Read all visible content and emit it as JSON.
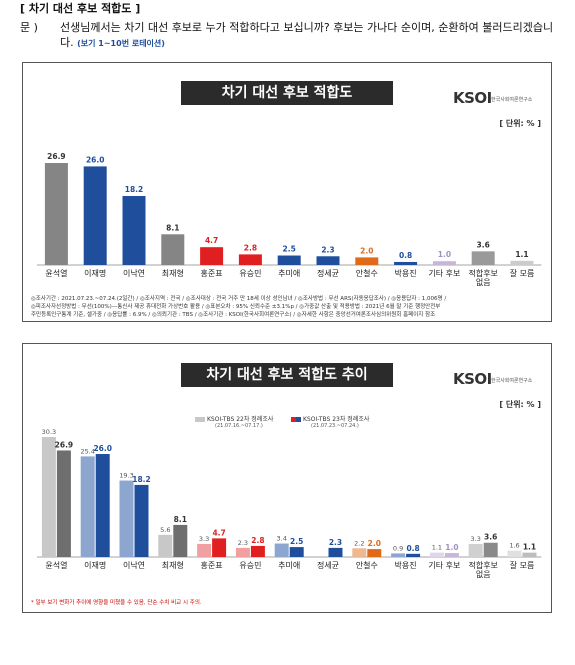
{
  "page": {
    "section_title": "[ 차기 대선 후보 적합도 ]",
    "question_label": "문 )",
    "question_text": "선생님께서는 차기 대선 후보로 누가 적합하다고 보십니까? 후보는 가나다 순이며, 순환하여 불러드리겠습니다.",
    "question_note": "(보기 1~10번 로테이션)"
  },
  "panel1": {
    "title": "차기 대선 후보 적합도",
    "logo_main": "KSOI",
    "logo_sub": "한국사회여론연구소",
    "unit": "[ 단위: % ]",
    "footnote_line1": "◎조사기간 : 2021.07.23.~07.24.(2일간) / ◎조사지역 : 전국 / ◎조사대상 : 전국 거주 만 18세 이상 성인남녀 / ◎조사방법 : 무선 ARS(자동응답조사) / ◎응용답자 : 1,006명 /",
    "footnote_line2": "◎피조사자선정방법 : 무선(100%)—통신사 제공 휴대전화 가상번호 활용 / ◎표본오차 : 95% 신뢰수준 ±3.1%p / ◎가중값 산출 및 적용방법 : 2021년 6월 말 기준 행정안전부",
    "footnote_line3": "주민등록인구통계 기준, 셀가중 / ◎응답률 : 6.9% / ◎의뢰기관 : TBS / ◎조사기관 : KSOI(한국사회여론연구소) / ◎자세한 사항은 중앙선거여론조사심의위원회 홈페이지 참조"
  },
  "panel2": {
    "title": "차기 대선 후보 적합도 추이",
    "logo_main": "KSOI",
    "logo_sub": "한국사회여론연구소",
    "unit": "[ 단위: % ]",
    "legend1": "KSOI-TBS 22차 정례조사",
    "legend1_sub": "(21.07.16.~07.17.)",
    "legend2": "KSOI-TBS 23차 정례조사",
    "legend2_sub": "(21.07.23.~07.24.)",
    "footnote": "* 일부 보기 변화가 추이에 영향을 미쳤을 수 있음, 단순 수치 비교 시 주의."
  },
  "chart_data": [
    {
      "type": "bar",
      "title": "차기 대선 후보 적합도",
      "categories": [
        "윤석열",
        "이재명",
        "이낙연",
        "최재형",
        "홍준표",
        "유승민",
        "추미애",
        "정세균",
        "안철수",
        "박용진",
        "기타 후보",
        "적합후보 없음",
        "잘 모름"
      ],
      "values": [
        26.9,
        26.0,
        18.2,
        8.1,
        4.7,
        2.8,
        2.5,
        2.3,
        2.0,
        0.8,
        1.0,
        3.6,
        1.1
      ],
      "labels": [
        "26.9",
        "26.0",
        "18.2",
        "8.1",
        "4.7",
        "2.8",
        "2.5",
        "2.3",
        "2.0",
        "0.8",
        "1.0",
        "3.6",
        "1.1"
      ],
      "colors": [
        "#858585",
        "#1f4e9c",
        "#1f4e9c",
        "#858585",
        "#e02020",
        "#e02020",
        "#1f4e9c",
        "#1f4e9c",
        "#e06a1a",
        "#1f4e9c",
        "#c6b6d8",
        "#9a9a9a",
        "#cccccc"
      ],
      "label_colors": [
        "#333333",
        "#1f4e9c",
        "#1f4e9c",
        "#333333",
        "#e02020",
        "#e02020",
        "#1f4e9c",
        "#1f4e9c",
        "#e06a1a",
        "#1f4e9c",
        "#a090c0",
        "#333333",
        "#333333"
      ],
      "ylim": [
        0,
        30
      ]
    },
    {
      "type": "bar",
      "title": "차기 대선 후보 적합도 추이",
      "categories": [
        "윤석열",
        "이재명",
        "이낙연",
        "최재형",
        "홍준표",
        "유승민",
        "추미애",
        "정세균",
        "안철수",
        "박용진",
        "기타 후보",
        "적합후보 없음",
        "잘 모름"
      ],
      "series": [
        {
          "name": "KSOI-TBS 22차 정례조사",
          "values": [
            30.3,
            25.4,
            19.3,
            5.6,
            3.3,
            2.3,
            3.4,
            null,
            2.2,
            0.9,
            1.1,
            3.3,
            1.6
          ],
          "labels": [
            "30.3",
            "25.4",
            "19.3",
            "5.6",
            "3.3",
            "2.3",
            "3.4",
            "",
            "2.2",
            "0.9",
            "1.1",
            "3.3",
            "1.6"
          ]
        },
        {
          "name": "KSOI-TBS 23차 정례조사",
          "values": [
            26.9,
            26.0,
            18.2,
            8.1,
            4.7,
            2.8,
            2.5,
            2.3,
            2.0,
            0.8,
            1.0,
            3.6,
            1.1
          ],
          "labels": [
            "26.9",
            "26.0",
            "18.2",
            "8.1",
            "4.7",
            "2.8",
            "2.5",
            "2.3",
            "2.0",
            "0.8",
            "1.0",
            "3.6",
            "1.1"
          ]
        }
      ],
      "colors_prev": [
        "#c8c8c8",
        "#8da6d0",
        "#8da6d0",
        "#c8c8c8",
        "#f0a0a0",
        "#f0a0a0",
        "#8da6d0",
        "#8da6d0",
        "#f0b890",
        "#8da6d0",
        "#e0d6ec",
        "#d0d0d0",
        "#e0e0e0"
      ],
      "colors_curr": [
        "#6e6e6e",
        "#1f4e9c",
        "#1f4e9c",
        "#6e6e6e",
        "#e02020",
        "#e02020",
        "#1f4e9c",
        "#1f4e9c",
        "#e06a1a",
        "#1f4e9c",
        "#c6b6d8",
        "#8a8a8a",
        "#bdbdbd"
      ],
      "label_colors_curr": [
        "#333333",
        "#1f4e9c",
        "#1f4e9c",
        "#333333",
        "#e02020",
        "#e02020",
        "#1f4e9c",
        "#1f4e9c",
        "#e06a1a",
        "#1f4e9c",
        "#a090c0",
        "#333333",
        "#333333"
      ],
      "ylim": [
        0,
        33
      ]
    }
  ]
}
